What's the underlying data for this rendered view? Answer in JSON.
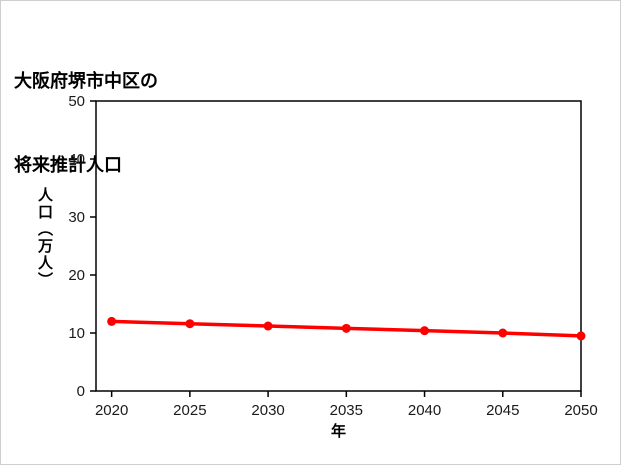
{
  "title": {
    "line1": "大阪府堺市中区の",
    "line2": "将来推計人口"
  },
  "chart_data": {
    "type": "line",
    "title": "大阪府堺市中区の将来推計人口",
    "xlabel": "年",
    "ylabel": "人口（万人）",
    "x": [
      2020,
      2025,
      2030,
      2035,
      2040,
      2045,
      2050
    ],
    "values": [
      12.0,
      11.6,
      11.2,
      10.8,
      10.4,
      10.0,
      9.5
    ],
    "series_name": "将来推計人口",
    "xlim": [
      2019,
      2050
    ],
    "ylim": [
      0,
      50
    ],
    "xticks": [
      2020,
      2025,
      2030,
      2035,
      2040,
      2045,
      2050
    ],
    "yticks": [
      0,
      10,
      20,
      30,
      40,
      50
    ],
    "grid": false,
    "legend": false,
    "line_color": "#ff0000",
    "marker": "circle"
  },
  "colors": {
    "accent": "#ff0000",
    "axis": "#000000",
    "background": "#ffffff",
    "frame_border": "#d0cfcf"
  }
}
